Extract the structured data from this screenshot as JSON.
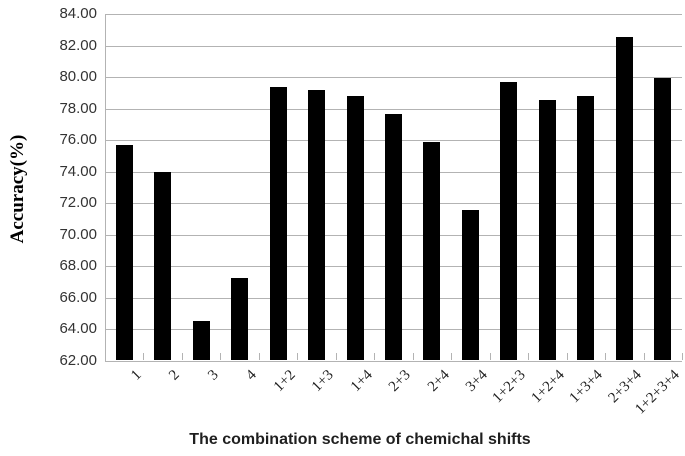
{
  "chart_data": {
    "type": "bar",
    "title": "",
    "xlabel": "The combination scheme of chemichal shifts",
    "ylabel": "Accuracy(%)",
    "categories": [
      "1",
      "2",
      "3",
      "4",
      "1+2",
      "1+3",
      "1+4",
      "2+3",
      "2+4",
      "3+4",
      "1+2+3",
      "1+2+4",
      "1+3+4",
      "2+3+4",
      "1+2+3+4"
    ],
    "values": [
      75.6,
      73.9,
      64.5,
      67.2,
      79.3,
      79.1,
      78.75,
      77.6,
      75.85,
      71.5,
      79.6,
      78.5,
      78.75,
      82.5,
      79.9
    ],
    "ylim": [
      62,
      84
    ],
    "ytick_step": 2,
    "ytick_labels": [
      "84.00",
      "82.00",
      "80.00",
      "78.00",
      "76.00",
      "74.00",
      "72.00",
      "70.00",
      "68.00",
      "66.00",
      "64.00",
      "62.00"
    ],
    "grid": true,
    "legend": "none",
    "bar_color": "#000000",
    "gridline_color": "#b3b3b3",
    "background_color": "#ffffff"
  }
}
